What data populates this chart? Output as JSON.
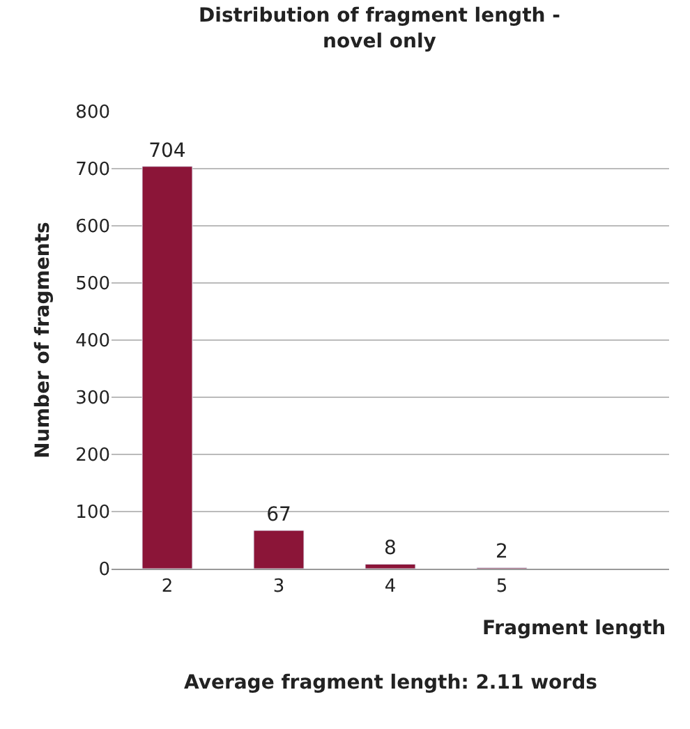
{
  "chart_data": {
    "type": "bar",
    "title": "Distribution of fragment length -\nnovel only",
    "xlabel": "Fragment length",
    "ylabel": "Number of fragments",
    "categories": [
      "2",
      "3",
      "4",
      "5",
      null
    ],
    "series": [
      {
        "color": "#8b1538",
        "values": [
          704,
          67,
          8,
          2,
          null
        ]
      }
    ],
    "ylim": [
      0,
      800
    ],
    "yticks": [
      0,
      100,
      200,
      300,
      400,
      500,
      600,
      700,
      800
    ],
    "grid": "y",
    "data_labels": true,
    "legend": false,
    "annotations": [
      "Average fragment length: 2.11 words"
    ]
  }
}
